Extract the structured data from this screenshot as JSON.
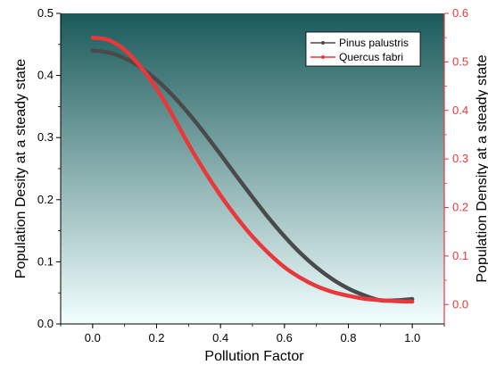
{
  "colors": {
    "series1": "#4a4a4a",
    "series2": "#e8383b",
    "right_axis": "#e8383b",
    "bg_top": "#1b5a5a",
    "bg_bottom": "#f2ffff"
  },
  "chart_data": {
    "type": "line",
    "xlabel": "Pollution Factor",
    "ylabel_left": "Population Desity at a steady state",
    "ylabel_right": "Population Density at a steady state",
    "xlim": [
      -0.1,
      1.1
    ],
    "ylim_left": [
      0.0,
      0.5
    ],
    "ylim_right": [
      -0.04,
      0.6
    ],
    "x_ticks": [
      "0.0",
      "0.2",
      "0.4",
      "0.6",
      "0.8",
      "1.0"
    ],
    "y_left_ticks": [
      "0.0",
      "0.1",
      "0.2",
      "0.3",
      "0.4",
      "0.5"
    ],
    "y_right_ticks": [
      "0.0",
      "0.1",
      "0.2",
      "0.3",
      "0.4",
      "0.5",
      "0.6"
    ],
    "legend_position": "top-right",
    "grid": false,
    "series": [
      {
        "name": "Pinus palustris",
        "axis": "left",
        "x": [
          0.0,
          0.05,
          0.1,
          0.15,
          0.2,
          0.25,
          0.3,
          0.35,
          0.4,
          0.45,
          0.5,
          0.55,
          0.6,
          0.65,
          0.7,
          0.75,
          0.8,
          0.85,
          0.9,
          0.95,
          1.0
        ],
        "y": [
          0.44,
          0.437,
          0.428,
          0.413,
          0.393,
          0.368,
          0.339,
          0.307,
          0.273,
          0.238,
          0.204,
          0.171,
          0.141,
          0.114,
          0.091,
          0.072,
          0.057,
          0.046,
          0.038,
          0.038,
          0.04
        ]
      },
      {
        "name": "Quercus fabri",
        "axis": "right",
        "x": [
          0.0,
          0.05,
          0.1,
          0.15,
          0.2,
          0.25,
          0.3,
          0.35,
          0.4,
          0.45,
          0.5,
          0.55,
          0.6,
          0.65,
          0.7,
          0.75,
          0.8,
          0.85,
          0.9,
          0.95,
          1.0
        ],
        "y": [
          0.55,
          0.545,
          0.525,
          0.49,
          0.445,
          0.39,
          0.33,
          0.275,
          0.225,
          0.18,
          0.14,
          0.106,
          0.077,
          0.055,
          0.038,
          0.026,
          0.018,
          0.012,
          0.009,
          0.007,
          0.006
        ]
      }
    ]
  }
}
